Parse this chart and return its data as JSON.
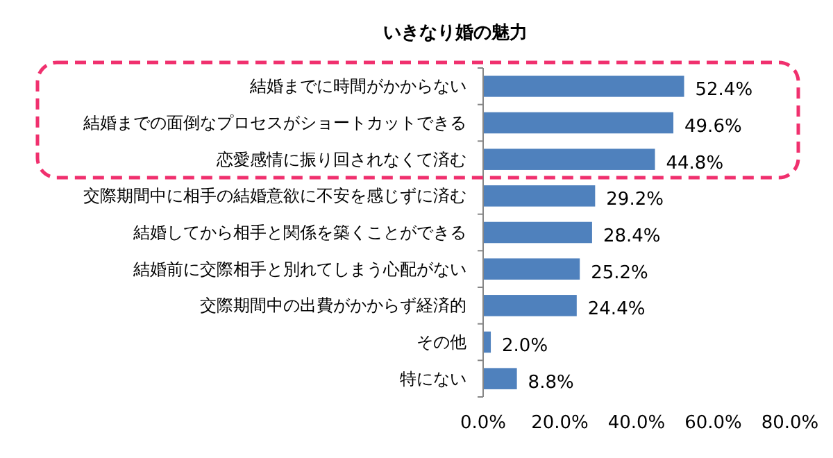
{
  "chart_data": {
    "type": "bar",
    "orientation": "horizontal",
    "title": "いきなり婚の魅力",
    "categories": [
      "結婚までに時間がかからない",
      "結婚までの面倒なプロセスがショートカットできる",
      "恋愛感情に振り回されなくて済む",
      "交際期間中に相手の結婚意欲に不安を感じずに済む",
      "結婚してから相手と関係を築くことができる",
      "結婚前に交際相手と別れてしまう心配がない",
      "交際期間中の出費がかからず経済的",
      "その他",
      "特にない"
    ],
    "values": [
      52.4,
      49.6,
      44.8,
      29.2,
      28.4,
      25.2,
      24.4,
      2.0,
      8.8
    ],
    "value_labels": [
      "52.4%",
      "49.6%",
      "44.8%",
      "29.2%",
      "28.4%",
      "25.2%",
      "24.4%",
      "2.0%",
      "8.8%"
    ],
    "color": "#4f81bd",
    "xlim": [
      0,
      80
    ],
    "xticks": [
      {
        "value": 0,
        "label": "0.0%"
      },
      {
        "value": 20,
        "label": "20.0%"
      },
      {
        "value": 40,
        "label": "40.0%"
      },
      {
        "value": 60,
        "label": "60.0%"
      },
      {
        "value": 80,
        "label": "80.0%"
      }
    ],
    "grid": false
  }
}
